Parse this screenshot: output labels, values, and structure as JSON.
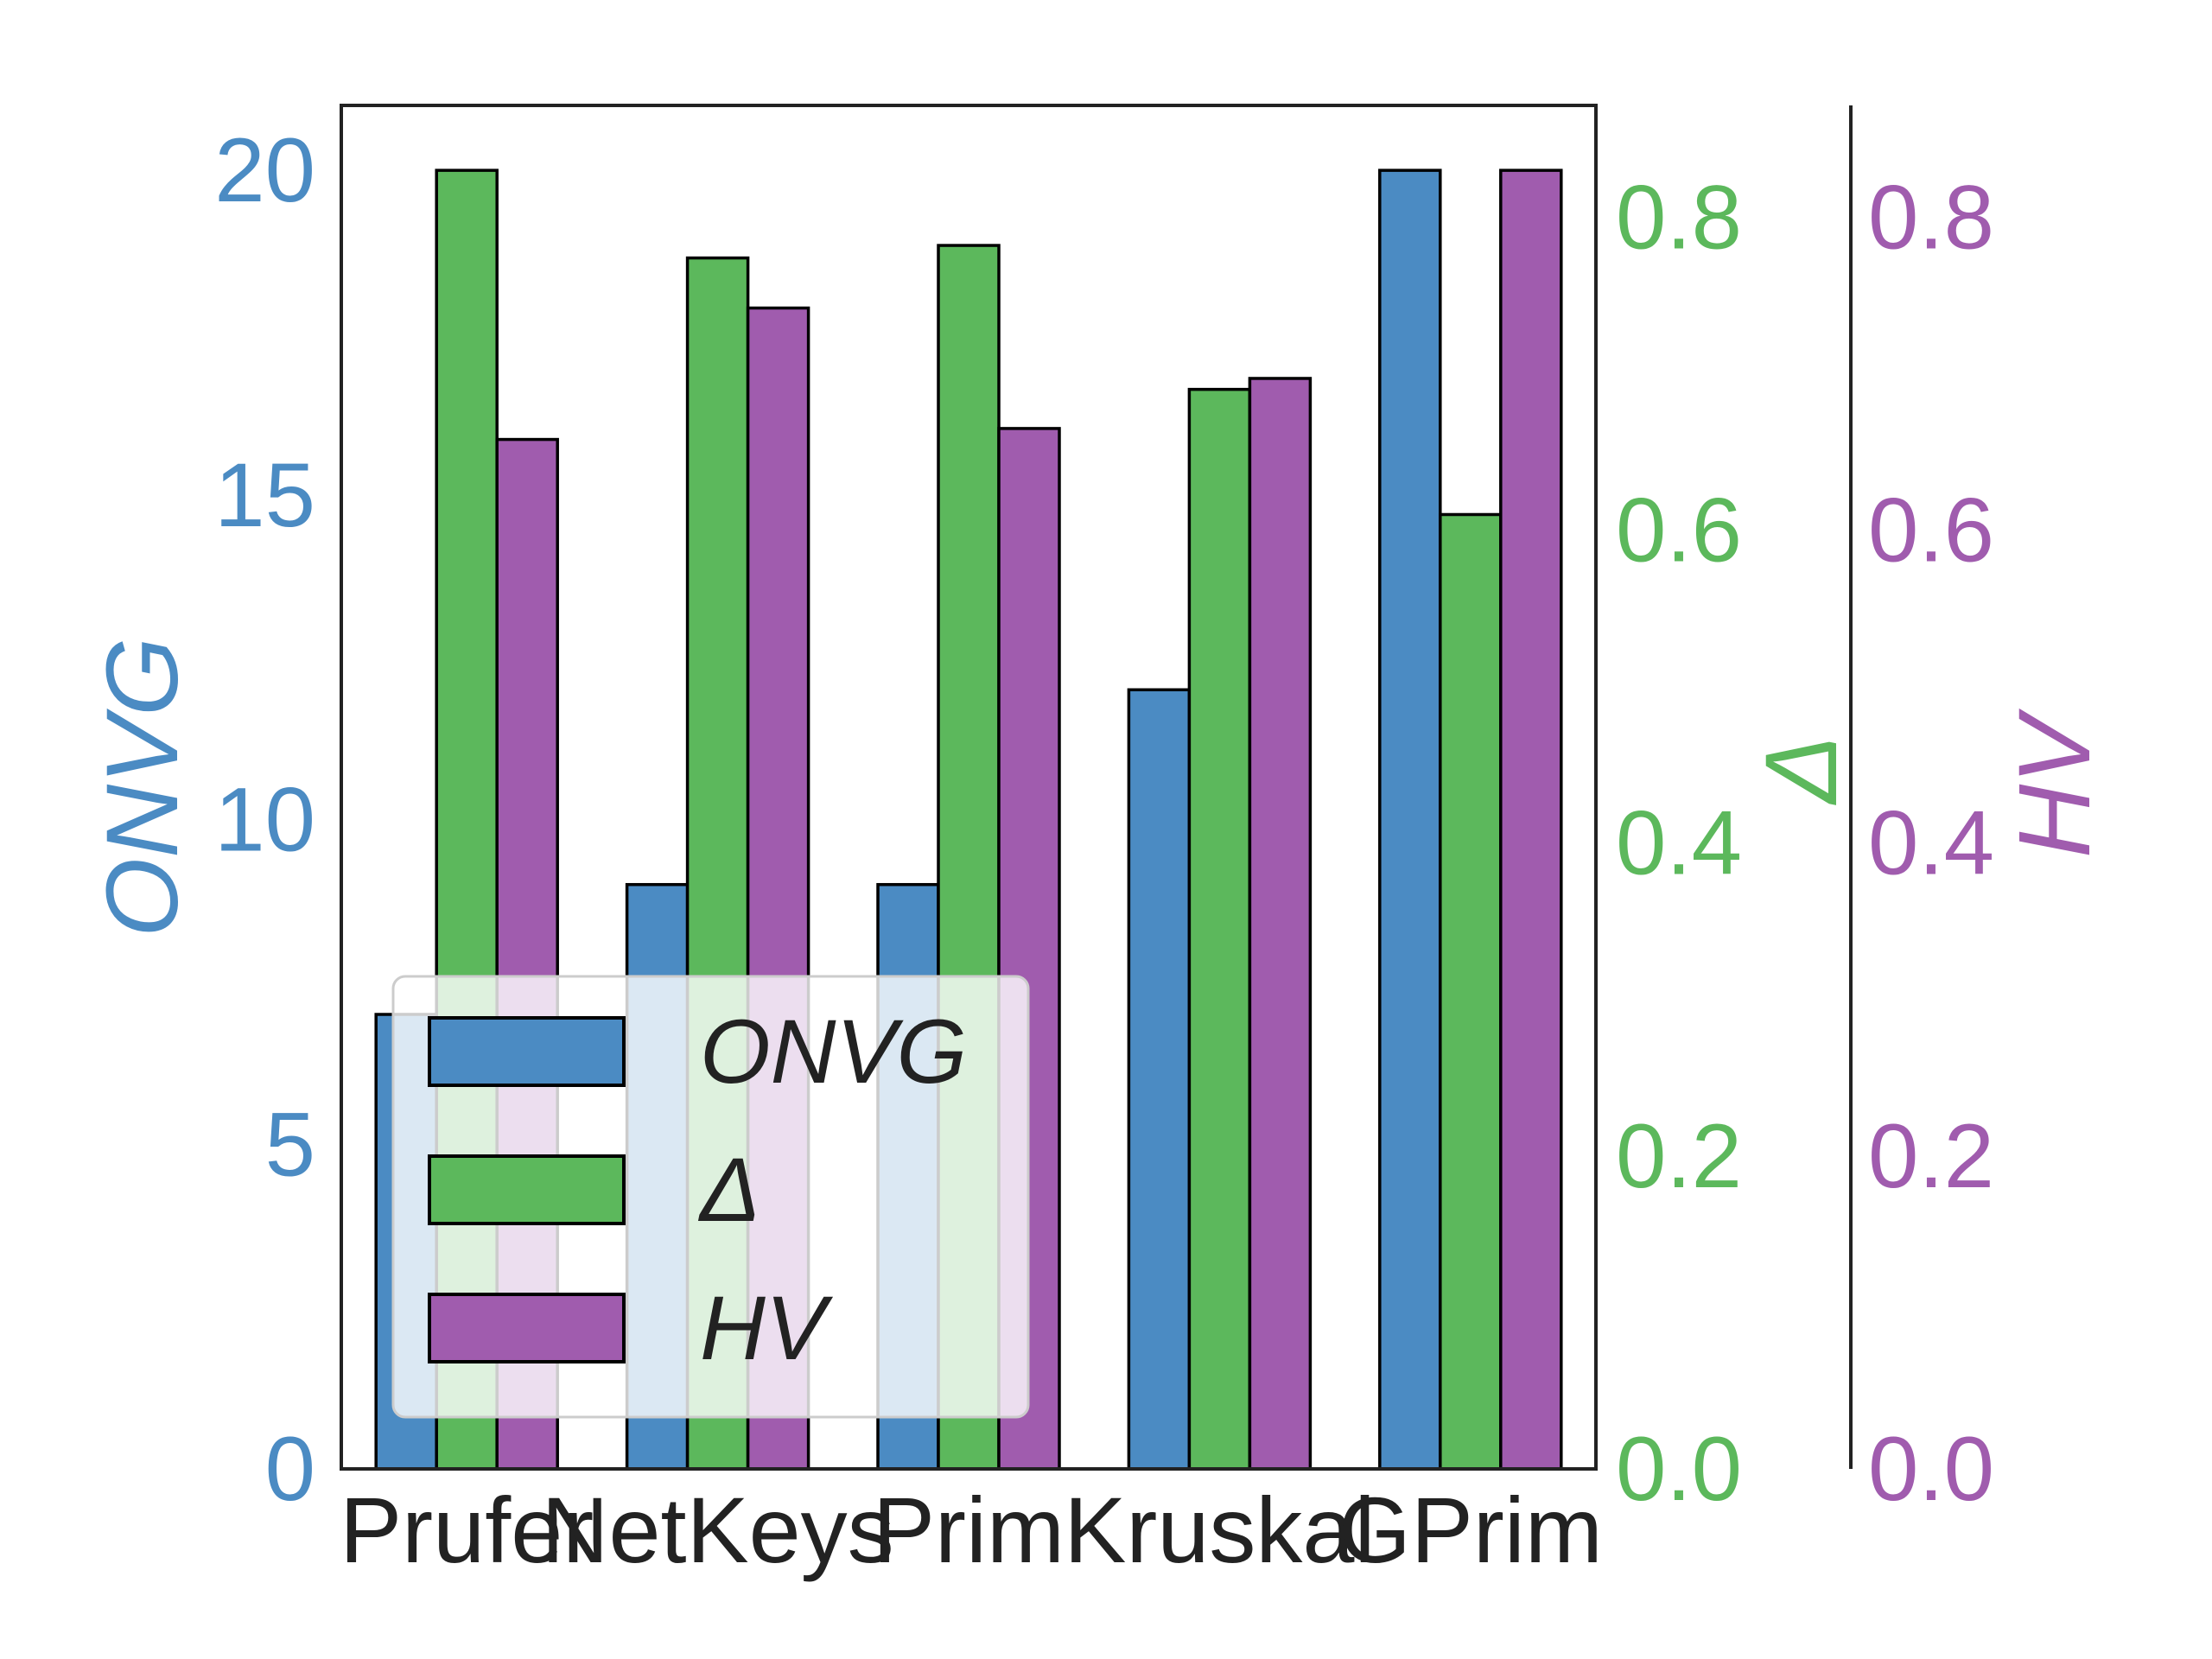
{
  "colors": {
    "onvg": "#4b8bc3",
    "delta": "#5cb85c",
    "hv": "#a05cae",
    "axis": "#222222"
  },
  "chart_data": {
    "type": "bar",
    "categories": [
      "Prufer",
      "NetKeys",
      "Prim",
      "Kruskal",
      "GPrim"
    ],
    "series": [
      {
        "name": "ONVG",
        "axis": "left",
        "values": [
          7,
          9,
          9,
          12,
          20
        ]
      },
      {
        "name": "Δ",
        "axis": "right1",
        "values": [
          0.83,
          0.774,
          0.782,
          0.69,
          0.61
        ]
      },
      {
        "name": "HV",
        "axis": "right2",
        "values": [
          0.658,
          0.742,
          0.665,
          0.697,
          0.83
        ]
      }
    ],
    "axes": {
      "left": {
        "label": "ONVG",
        "ylim": [
          0,
          21
        ],
        "ticks": [
          "0",
          "5",
          "10",
          "15",
          "20"
        ],
        "tick_values": [
          0,
          5,
          10,
          15,
          20
        ]
      },
      "right1": {
        "label": "Δ",
        "ylim": [
          0,
          0.8715
        ],
        "ticks": [
          "0.0",
          "0.2",
          "0.4",
          "0.6",
          "0.8"
        ],
        "tick_values": [
          0,
          0.2,
          0.4,
          0.6,
          0.8
        ]
      },
      "right2": {
        "label": "HV",
        "ylim": [
          0,
          0.8715
        ],
        "ticks": [
          "0.0",
          "0.2",
          "0.4",
          "0.6",
          "0.8"
        ],
        "tick_values": [
          0,
          0.2,
          0.4,
          0.6,
          0.8
        ]
      }
    },
    "legend": {
      "placement": "lower-left",
      "entries": [
        "ONVG",
        "Δ",
        "HV"
      ]
    },
    "grid": false
  }
}
